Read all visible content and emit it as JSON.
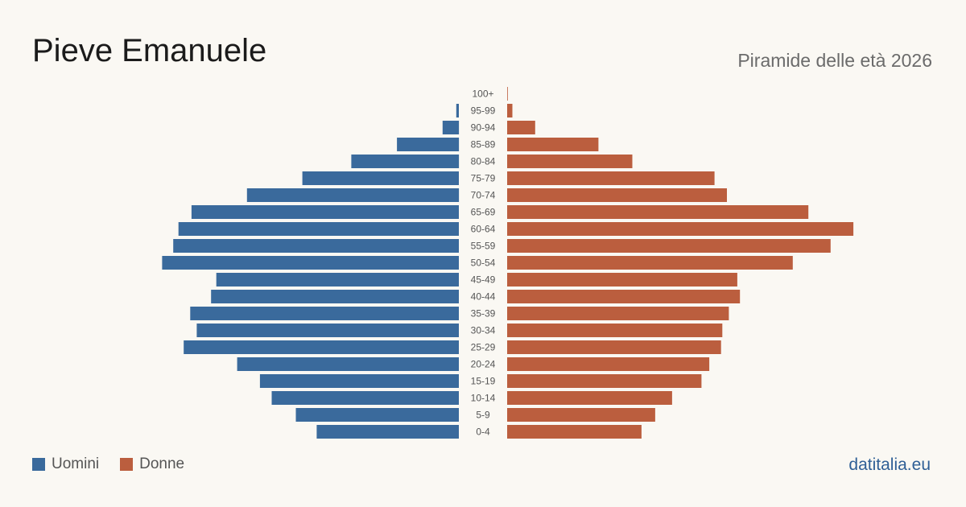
{
  "header": {
    "title": "Pieve Emanuele",
    "subtitle": "Piramide delle età 2026"
  },
  "legend": {
    "men_label": "Uomini",
    "women_label": "Donne"
  },
  "source": {
    "label": "datitalia.eu"
  },
  "colors": {
    "men": "#3a6a9c",
    "women": "#bb5e3e",
    "background": "#faf8f3"
  },
  "chart_data": {
    "type": "bar",
    "orientation": "horizontal-pyramid",
    "categories": [
      "100+",
      "95-99",
      "90-94",
      "85-89",
      "80-84",
      "75-79",
      "70-74",
      "65-69",
      "60-64",
      "55-59",
      "50-54",
      "45-49",
      "40-44",
      "35-39",
      "30-34",
      "25-29",
      "20-24",
      "15-19",
      "10-14",
      "5-9",
      "0-4"
    ],
    "series": [
      {
        "name": "Uomini",
        "values": [
          0,
          4,
          25,
          95,
          165,
          240,
          325,
          410,
          430,
          438,
          455,
          372,
          380,
          412,
          402,
          422,
          340,
          305,
          287,
          250,
          218
        ]
      },
      {
        "name": "Donne",
        "values": [
          1,
          8,
          43,
          140,
          192,
          318,
          337,
          462,
          531,
          496,
          438,
          353,
          357,
          340,
          330,
          328,
          310,
          298,
          253,
          227,
          206
        ]
      }
    ],
    "legend_position": "bottom-left",
    "grid": false
  }
}
